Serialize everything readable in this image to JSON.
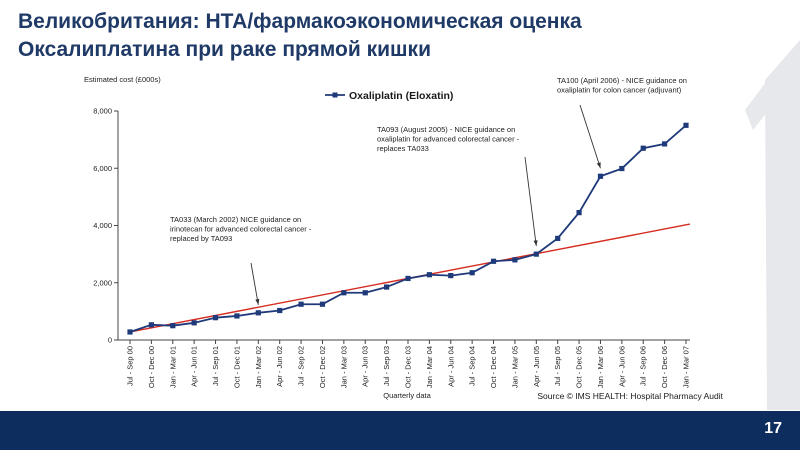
{
  "slide": {
    "title_line1": "Великобритания: НТА/фармакоэкономическая оценка",
    "title_line2": "Оксалиплатина при раке прямой кишки",
    "page_number": "17",
    "colors": {
      "footer": "#0d2d5e",
      "title": "#1f3a66"
    }
  },
  "chart_data": {
    "type": "line",
    "ylabel": "Estimated cost (£000s)",
    "xlabel": "Quarterly data",
    "ylim": [
      0,
      8000
    ],
    "yticks": [
      0,
      2000,
      4000,
      6000,
      8000
    ],
    "ytick_labels": [
      "0",
      "2,000",
      "4,000",
      "6,000",
      "8,000"
    ],
    "grid": false,
    "legend_position": "top",
    "source": "Source © IMS HEALTH: Hospital Pharmacy Audit",
    "categories": [
      "Jul - Sep 00",
      "Oct - Dec 00",
      "Jan - Mar 01",
      "Apr - Jun 01",
      "Jul - Sep 01",
      "Oct - Dec 01",
      "Jan - Mar 02",
      "Apr - Jun 02",
      "Jul - Sep 02",
      "Oct - Dec 02",
      "Jan - Mar 03",
      "Apr - Jun 03",
      "Jul - Sep 03",
      "Oct - Dec 03",
      "Jan - Mar 04",
      "Apr - Jun 04",
      "Jul - Sep 04",
      "Oct - Dec 04",
      "Jan - Mar 05",
      "Apr - Jun 05",
      "Jul - Sep 05",
      "Oct - Dec 05",
      "Jan - Mar 06",
      "Apr - Jun 06",
      "Jul - Sep 06",
      "Oct - Dec 06",
      "Jan - Mar 07"
    ],
    "series": [
      {
        "name": "Oxaliplatin (Eloxatin)",
        "color": "#1f3a7a",
        "values": [
          280,
          530,
          500,
          600,
          780,
          840,
          950,
          1030,
          1250,
          1250,
          1650,
          1650,
          1850,
          2150,
          2280,
          2250,
          2350,
          2750,
          2800,
          3000,
          3550,
          4450,
          5720,
          5990,
          6700,
          6850,
          7500
        ]
      }
    ],
    "trend_line": {
      "color": "#d62b1f",
      "start_value": 280,
      "end_value": 4050
    },
    "annotations": [
      {
        "label": "TA033 (March 2002) NICE guidance on irinotecan for advanced colorectal cancer - replaced by TA093",
        "lines": [
          "TA033 (March 2002) NICE guidance on",
          "irinotecan for advanced colorectal cancer -",
          "replaced by TA093"
        ],
        "target_category": "Jan - Mar 02"
      },
      {
        "label": "TA093 (August 2005) - NICE guidance on oxaliplatin for advanced colorectal cancer - replaces TA033",
        "lines": [
          "TA093 (August 2005) - NICE guidance on",
          "oxaliplatin for advanced colorectal cancer -",
          "replaces TA033"
        ],
        "target_category": "Apr - Jun 05"
      },
      {
        "label": "TA100 (April 2006) - NICE guidance on oxaliplatin for colon cancer (adjuvant)",
        "lines": [
          "TA100 (April 2006) - NICE guidance on",
          "oxaliplatin for colon cancer (adjuvant)"
        ],
        "target_category": "Jan - Mar 06"
      }
    ]
  }
}
